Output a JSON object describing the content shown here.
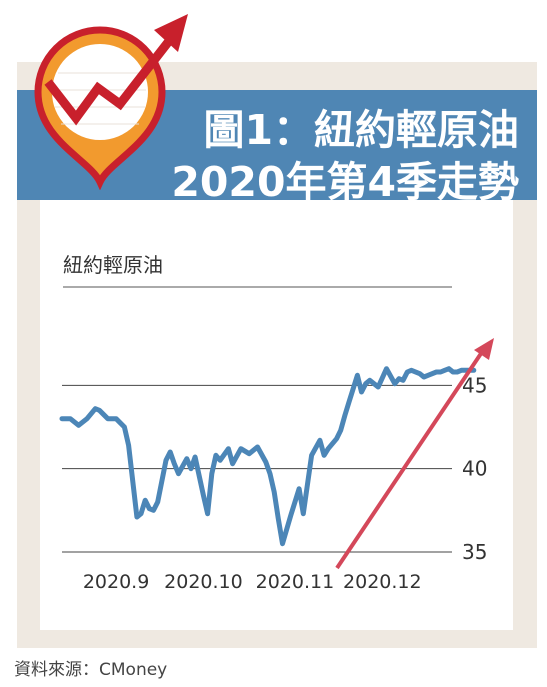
{
  "header": {
    "title_line1": "圖1：紐約輕原油",
    "title_line2": "2020年第4季走勢"
  },
  "source": "資料來源：CMoney",
  "colors": {
    "banner": "#4f86b4",
    "series": "#4c86b7",
    "trend_arrow": "#d4485a",
    "logo_red": "#c8202c",
    "logo_orange": "#f29a2e"
  },
  "icons": {
    "logo": "rising-chart-pin-icon"
  },
  "chart_data": {
    "type": "line",
    "subtitle": "紐約輕原油",
    "ylim": [
      35,
      47
    ],
    "yticks": [
      35,
      40,
      45
    ],
    "ytick_labels": [
      "35",
      "40",
      "45"
    ],
    "xlim": [
      0,
      100
    ],
    "xticks": [
      13,
      34,
      56,
      77
    ],
    "xtick_labels": [
      "2020.9",
      "2020.10",
      "2020.11",
      "2020.12"
    ],
    "grid": "horizontal",
    "series": [
      {
        "x": [
          0,
          2,
          4,
          6,
          8,
          9,
          11,
          13,
          15,
          16,
          18,
          19,
          20,
          21,
          22,
          23,
          25,
          26,
          27,
          28,
          30,
          31,
          32,
          34,
          35,
          36,
          37,
          38,
          40,
          41,
          43,
          45,
          47,
          49,
          50,
          51,
          52,
          53,
          55,
          57,
          58,
          60,
          62,
          63,
          64,
          65,
          66,
          67,
          68,
          69,
          71,
          72,
          73,
          74,
          76,
          78,
          80,
          81,
          82,
          83,
          84,
          86,
          87,
          88,
          90,
          91,
          92,
          93,
          94,
          95,
          96,
          97,
          98,
          99
        ],
        "values": [
          43.0,
          43.0,
          42.6,
          43.0,
          43.6,
          43.5,
          43.0,
          43.0,
          42.5,
          41.4,
          37.1,
          37.3,
          38.1,
          37.6,
          37.5,
          38.0,
          40.5,
          41.0,
          40.3,
          39.7,
          40.6,
          40.0,
          40.7,
          38.4,
          37.3,
          39.7,
          40.8,
          40.5,
          41.2,
          40.3,
          41.2,
          40.9,
          41.3,
          40.4,
          39.7,
          38.6,
          37.0,
          35.5,
          37.2,
          38.8,
          37.3,
          40.8,
          41.7,
          40.8,
          41.2,
          41.5,
          41.8,
          42.3,
          43.2,
          44.0,
          45.6,
          44.6,
          45.1,
          45.3,
          44.9,
          46.0,
          45.1,
          45.4,
          45.3,
          45.8,
          45.9,
          45.7,
          45.5,
          45.6,
          45.8,
          45.8,
          45.9,
          46.0,
          45.8,
          45.8,
          45.9,
          45.9,
          45.9,
          45.9
        ]
      }
    ]
  }
}
